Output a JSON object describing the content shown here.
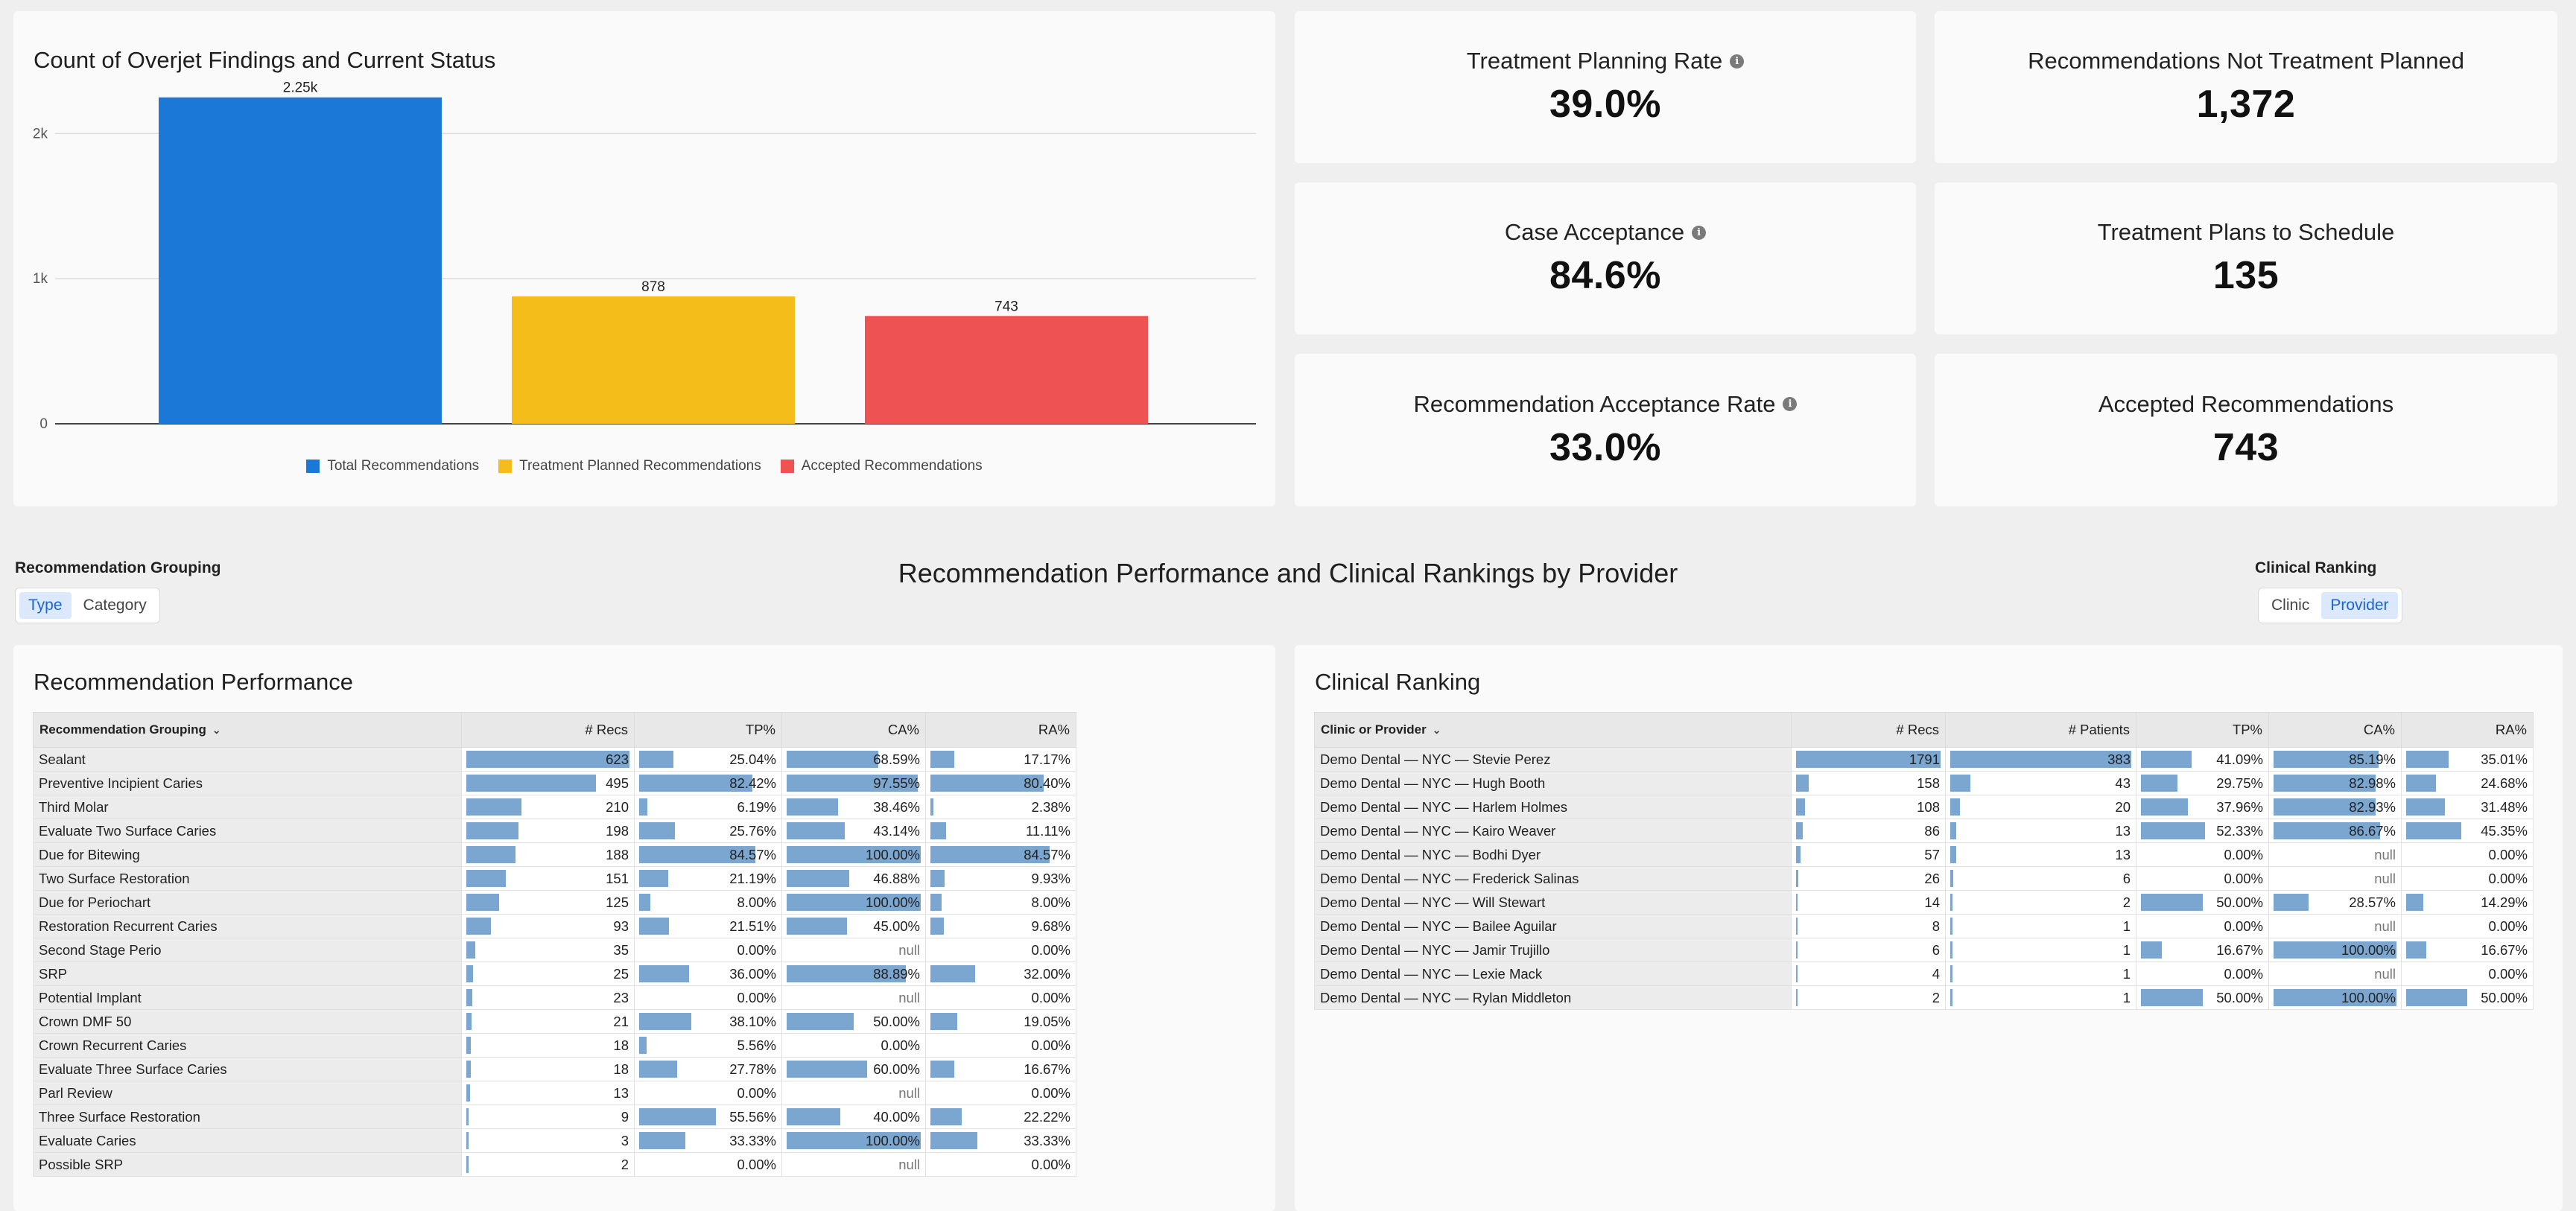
{
  "chart": {
    "title": "Count of Overjet Findings and Current Status",
    "chart_data": {
      "type": "bar",
      "title": "Count of Overjet Findings and Current Status",
      "categories": [
        "Total Recommendations",
        "Treatment Planned Recommendations",
        "Accepted Recommendations"
      ],
      "values": [
        2250,
        878,
        743
      ],
      "data_labels": [
        "2.25k",
        "878",
        "743"
      ],
      "colors": [
        "#1b78d6",
        "#f5bd19",
        "#ee5253"
      ],
      "yticks": [
        {
          "value": 0,
          "label": "0"
        },
        {
          "value": 1000,
          "label": "1k"
        },
        {
          "value": 2000,
          "label": "2k"
        }
      ],
      "ylim": [
        0,
        2300
      ],
      "xlabel": "",
      "ylabel": "",
      "grid": true,
      "legend": "bottom"
    }
  },
  "kpis": [
    {
      "label": "Treatment Planning Rate",
      "value": "39.0%",
      "info": true
    },
    {
      "label": "Recommendations Not Treatment Planned",
      "value": "1,372",
      "info": false
    },
    {
      "label": "Case Acceptance",
      "value": "84.6%",
      "info": true
    },
    {
      "label": "Treatment Plans to Schedule",
      "value": "135",
      "info": false
    },
    {
      "label": "Recommendation Acceptance Rate",
      "value": "33.0%",
      "info": true
    },
    {
      "label": "Accepted Recommendations",
      "value": "743",
      "info": false
    }
  ],
  "controls": {
    "grouping_label": "Recommendation Grouping",
    "grouping_options": [
      "Type",
      "Category"
    ],
    "grouping_selected": "Type",
    "ranking_label": "Clinical Ranking",
    "ranking_options": [
      "Clinic",
      "Provider"
    ],
    "ranking_selected": "Provider"
  },
  "section_title": "Recommendation Performance and Clinical Rankings by Provider",
  "performance": {
    "title": "Recommendation Performance",
    "columns": [
      "Recommendation Grouping",
      "# Recs",
      "TP%",
      "CA%",
      "RA%"
    ],
    "rows": [
      {
        "name": "Sealant",
        "recs": "623",
        "tp": "25.04%",
        "ca": "68.59%",
        "ra": "17.17%"
      },
      {
        "name": "Preventive Incipient Caries",
        "recs": "495",
        "tp": "82.42%",
        "ca": "97.55%",
        "ra": "80.40%"
      },
      {
        "name": "Third Molar",
        "recs": "210",
        "tp": "6.19%",
        "ca": "38.46%",
        "ra": "2.38%"
      },
      {
        "name": "Evaluate Two Surface Caries",
        "recs": "198",
        "tp": "25.76%",
        "ca": "43.14%",
        "ra": "11.11%"
      },
      {
        "name": "Due for Bitewing",
        "recs": "188",
        "tp": "84.57%",
        "ca": "100.00%",
        "ra": "84.57%"
      },
      {
        "name": "Two Surface Restoration",
        "recs": "151",
        "tp": "21.19%",
        "ca": "46.88%",
        "ra": "9.93%"
      },
      {
        "name": "Due for Periochart",
        "recs": "125",
        "tp": "8.00%",
        "ca": "100.00%",
        "ra": "8.00%"
      },
      {
        "name": "Restoration Recurrent Caries",
        "recs": "93",
        "tp": "21.51%",
        "ca": "45.00%",
        "ra": "9.68%"
      },
      {
        "name": "Second Stage Perio",
        "recs": "35",
        "tp": "0.00%",
        "ca": "null",
        "ra": "0.00%"
      },
      {
        "name": "SRP",
        "recs": "25",
        "tp": "36.00%",
        "ca": "88.89%",
        "ra": "32.00%"
      },
      {
        "name": "Potential Implant",
        "recs": "23",
        "tp": "0.00%",
        "ca": "null",
        "ra": "0.00%"
      },
      {
        "name": "Crown DMF 50",
        "recs": "21",
        "tp": "38.10%",
        "ca": "50.00%",
        "ra": "19.05%"
      },
      {
        "name": "Crown Recurrent Caries",
        "recs": "18",
        "tp": "5.56%",
        "ca": "0.00%",
        "ra": "0.00%"
      },
      {
        "name": "Evaluate Three Surface Caries",
        "recs": "18",
        "tp": "27.78%",
        "ca": "60.00%",
        "ra": "16.67%"
      },
      {
        "name": "Parl Review",
        "recs": "13",
        "tp": "0.00%",
        "ca": "null",
        "ra": "0.00%"
      },
      {
        "name": "Three Surface Restoration",
        "recs": "9",
        "tp": "55.56%",
        "ca": "40.00%",
        "ra": "22.22%"
      },
      {
        "name": "Evaluate Caries",
        "recs": "3",
        "tp": "33.33%",
        "ca": "100.00%",
        "ra": "33.33%"
      },
      {
        "name": "Possible SRP",
        "recs": "2",
        "tp": "0.00%",
        "ca": "null",
        "ra": "0.00%"
      }
    ]
  },
  "ranking": {
    "title": "Clinical Ranking",
    "columns": [
      "Clinic or Provider",
      "# Recs",
      "# Patients",
      "TP%",
      "CA%",
      "RA%"
    ],
    "rows": [
      {
        "name": "Demo Dental — NYC — Stevie Perez",
        "recs": "1791",
        "patients": "383",
        "tp": "41.09%",
        "ca": "85.19%",
        "ra": "35.01%"
      },
      {
        "name": "Demo Dental — NYC — Hugh Booth",
        "recs": "158",
        "patients": "43",
        "tp": "29.75%",
        "ca": "82.98%",
        "ra": "24.68%"
      },
      {
        "name": "Demo Dental — NYC — Harlem Holmes",
        "recs": "108",
        "patients": "20",
        "tp": "37.96%",
        "ca": "82.93%",
        "ra": "31.48%"
      },
      {
        "name": "Demo Dental — NYC — Kairo Weaver",
        "recs": "86",
        "patients": "13",
        "tp": "52.33%",
        "ca": "86.67%",
        "ra": "45.35%"
      },
      {
        "name": "Demo Dental — NYC — Bodhi Dyer",
        "recs": "57",
        "patients": "13",
        "tp": "0.00%",
        "ca": "null",
        "ra": "0.00%"
      },
      {
        "name": "Demo Dental — NYC — Frederick Salinas",
        "recs": "26",
        "patients": "6",
        "tp": "0.00%",
        "ca": "null",
        "ra": "0.00%"
      },
      {
        "name": "Demo Dental — NYC — Will Stewart",
        "recs": "14",
        "patients": "2",
        "tp": "50.00%",
        "ca": "28.57%",
        "ra": "14.29%"
      },
      {
        "name": "Demo Dental — NYC — Bailee Aguilar",
        "recs": "8",
        "patients": "1",
        "tp": "0.00%",
        "ca": "null",
        "ra": "0.00%"
      },
      {
        "name": "Demo Dental — NYC — Jamir Trujillo",
        "recs": "6",
        "patients": "1",
        "tp": "16.67%",
        "ca": "100.00%",
        "ra": "16.67%"
      },
      {
        "name": "Demo Dental — NYC — Lexie Mack",
        "recs": "4",
        "patients": "1",
        "tp": "0.00%",
        "ca": "null",
        "ra": "0.00%"
      },
      {
        "name": "Demo Dental — NYC — Rylan Middleton",
        "recs": "2",
        "patients": "1",
        "tp": "50.00%",
        "ca": "100.00%",
        "ra": "50.00%"
      }
    ]
  }
}
